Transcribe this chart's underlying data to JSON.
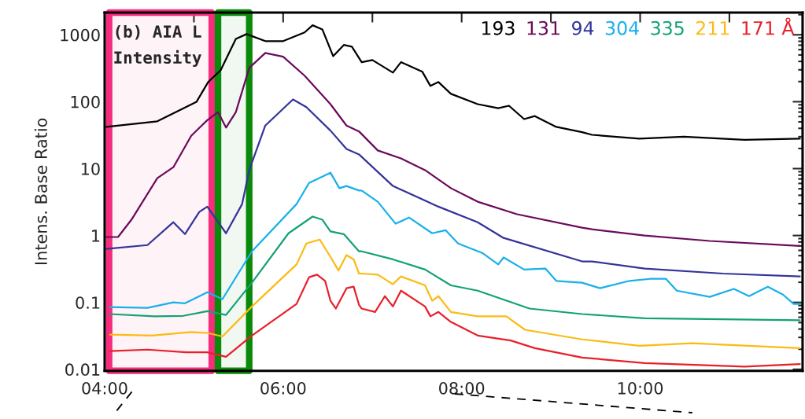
{
  "chart_data": {
    "type": "line",
    "ylabel": "Intens. Base Ratio",
    "annotations": [
      "(b) AIA L",
      "Intensity"
    ],
    "log": "y",
    "xlim": [
      4.0,
      11.82
    ],
    "xticks": [
      {
        "value": 4,
        "label": "04:00"
      },
      {
        "value": 5,
        "label": null
      },
      {
        "value": 6,
        "label": "06:00"
      },
      {
        "value": 7,
        "label": null
      },
      {
        "value": 8,
        "label": "08:00"
      },
      {
        "value": 9,
        "label": null
      },
      {
        "value": 10,
        "label": "10:00"
      },
      {
        "value": 11,
        "label": null
      }
    ],
    "ylim": [
      0.0095,
      2150
    ],
    "yticks": [
      {
        "value": 0.01,
        "label": "0.01"
      },
      {
        "value": 0.1,
        "label": "0.1"
      },
      1,
      10,
      100,
      1000
    ],
    "grid": false,
    "legend": "top right",
    "line_style": "solid",
    "bands": [
      {
        "axis": "x",
        "from": 4.05,
        "to": 5.2,
        "color": "#f62c7c"
      },
      {
        "axis": "x",
        "from": 5.27,
        "to": 5.62,
        "color": "#0a8a0a"
      }
    ],
    "series": [
      {
        "name": "193",
        "color": "#000000",
        "x": [
          4.02,
          4.59,
          5.03,
          5.16,
          5.3,
          5.47,
          5.59,
          5.8,
          6.0,
          6.24,
          6.33,
          6.44,
          6.56,
          6.68,
          6.77,
          6.88,
          7.0,
          7.23,
          7.32,
          7.56,
          7.65,
          7.74,
          7.88,
          8.18,
          8.41,
          8.53,
          8.7,
          8.82,
          9.06,
          9.35,
          9.46,
          9.99,
          10.49,
          11.17,
          11.79
        ],
        "values": [
          42,
          51,
          100,
          197,
          296,
          870,
          1025,
          805,
          805,
          1085,
          1390,
          1200,
          480,
          705,
          665,
          390,
          420,
          272,
          390,
          280,
          172,
          197,
          131,
          92,
          80,
          87,
          55,
          61,
          42,
          35,
          32,
          28,
          30,
          27,
          28
        ]
      },
      {
        "name": "131",
        "color": "#6b0a5c",
        "x": [
          4.02,
          4.15,
          4.3,
          4.59,
          4.77,
          4.97,
          5.15,
          5.27,
          5.36,
          5.47,
          5.62,
          5.8,
          6.0,
          6.24,
          6.53,
          6.71,
          6.85,
          7.06,
          7.32,
          7.59,
          7.88,
          8.18,
          8.62,
          9.35,
          9.46,
          10.05,
          10.78,
          11.79
        ],
        "values": [
          0.95,
          0.95,
          1.72,
          7.2,
          10.5,
          31,
          53,
          70,
          41,
          70,
          320,
          535,
          470,
          245,
          92,
          44,
          36,
          18.7,
          14.2,
          9.5,
          5.1,
          3.2,
          2.08,
          1.31,
          1.24,
          1.0,
          0.83,
          0.7
        ]
      },
      {
        "name": "94",
        "color": "#34349a",
        "x": [
          4.02,
          4.48,
          4.77,
          4.9,
          5.06,
          5.15,
          5.36,
          5.54,
          5.62,
          5.8,
          6.11,
          6.26,
          6.53,
          6.71,
          6.85,
          7.23,
          7.74,
          8.18,
          8.47,
          9.35,
          9.46,
          10.05,
          10.93,
          11.79
        ],
        "values": [
          0.63,
          0.72,
          1.58,
          1.05,
          2.25,
          2.7,
          1.08,
          2.95,
          9.5,
          44,
          108,
          83,
          37,
          19.7,
          16.3,
          5.5,
          2.7,
          1.58,
          0.92,
          0.41,
          0.41,
          0.32,
          0.27,
          0.245
        ]
      },
      {
        "name": "304",
        "color": "#18b0ea",
        "x": [
          4.06,
          4.48,
          4.77,
          4.9,
          5.15,
          5.32,
          5.65,
          6.15,
          6.29,
          6.53,
          6.63,
          6.71,
          6.85,
          6.88,
          7.06,
          7.26,
          7.41,
          7.67,
          7.82,
          7.96,
          8.23,
          8.41,
          8.47,
          8.7,
          8.94,
          9.06,
          9.35,
          9.55,
          9.88,
          10.11,
          10.29,
          10.41,
          10.78,
          11.05,
          11.22,
          11.43,
          11.6,
          11.72,
          11.81
        ],
        "values": [
          0.085,
          0.083,
          0.1,
          0.097,
          0.142,
          0.112,
          0.58,
          2.95,
          6.1,
          8.7,
          5.1,
          5.5,
          4.7,
          4.7,
          3.2,
          1.5,
          1.86,
          1.08,
          1.2,
          0.76,
          0.55,
          0.37,
          0.47,
          0.31,
          0.32,
          0.21,
          0.197,
          0.163,
          0.21,
          0.225,
          0.225,
          0.15,
          0.121,
          0.159,
          0.124,
          0.172,
          0.131,
          0.095,
          0.095
        ]
      },
      {
        "name": "335",
        "color": "#13a277",
        "x": [
          4.06,
          4.56,
          4.88,
          5.15,
          5.36,
          5.65,
          6.06,
          6.33,
          6.44,
          6.53,
          6.68,
          6.85,
          6.88,
          7.23,
          7.59,
          7.88,
          8.18,
          8.76,
          9.35,
          10.05,
          11.79
        ],
        "values": [
          0.067,
          0.062,
          0.063,
          0.074,
          0.065,
          0.197,
          1.08,
          1.92,
          1.72,
          1.15,
          1.05,
          0.58,
          0.58,
          0.44,
          0.31,
          0.18,
          0.15,
          0.081,
          0.067,
          0.058,
          0.054
        ]
      },
      {
        "name": "211",
        "color": "#fbbb14",
        "x": [
          4.06,
          4.53,
          4.97,
          5.15,
          5.32,
          5.65,
          6.15,
          6.26,
          6.41,
          6.53,
          6.62,
          6.71,
          6.79,
          6.85,
          6.88,
          7.06,
          7.23,
          7.32,
          7.59,
          7.67,
          7.74,
          7.88,
          8.18,
          8.5,
          8.71,
          9.35,
          9.99,
          10.58,
          11.79
        ],
        "values": [
          0.033,
          0.032,
          0.036,
          0.035,
          0.031,
          0.087,
          0.37,
          0.76,
          0.87,
          0.48,
          0.3,
          0.51,
          0.44,
          0.27,
          0.27,
          0.26,
          0.187,
          0.245,
          0.18,
          0.106,
          0.124,
          0.072,
          0.062,
          0.062,
          0.039,
          0.028,
          0.0225,
          0.0245,
          0.0207
        ]
      },
      {
        "name": "171 Å",
        "color": "#e8202a",
        "x": [
          4.06,
          4.48,
          4.91,
          5.15,
          5.36,
          5.65,
          6.15,
          6.29,
          6.38,
          6.47,
          6.53,
          6.59,
          6.71,
          6.79,
          6.85,
          6.88,
          7.03,
          7.14,
          7.23,
          7.32,
          7.59,
          7.65,
          7.74,
          7.88,
          8.18,
          8.55,
          8.82,
          9.35,
          10.05,
          11.17,
          11.79
        ],
        "values": [
          0.0187,
          0.0197,
          0.018,
          0.018,
          0.0154,
          0.032,
          0.095,
          0.238,
          0.26,
          0.21,
          0.106,
          0.081,
          0.163,
          0.172,
          0.092,
          0.081,
          0.072,
          0.124,
          0.087,
          0.15,
          0.087,
          0.062,
          0.072,
          0.051,
          0.032,
          0.027,
          0.0207,
          0.015,
          0.0124,
          0.011,
          0.012
        ]
      }
    ]
  }
}
